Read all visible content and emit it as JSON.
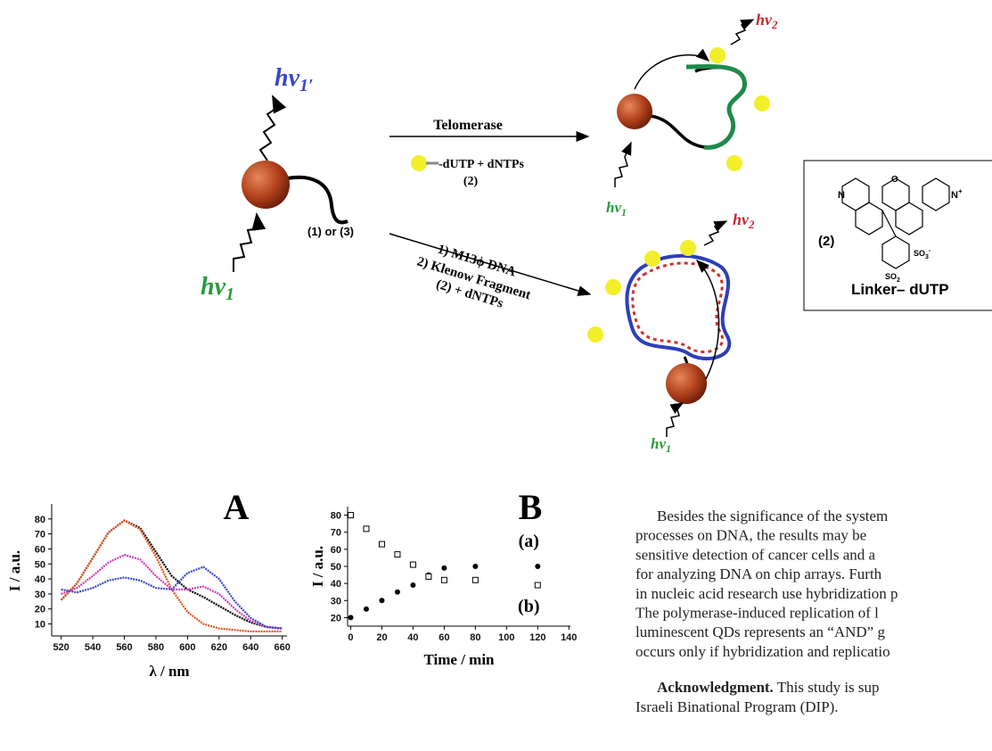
{
  "scheme": {
    "hv1_prime": {
      "main": "hν",
      "sub": "1′"
    },
    "hv1_left": {
      "main": "hν",
      "sub": "1"
    },
    "strand_label": "(1) or (3)",
    "top_arrow": {
      "above": "Telomerase",
      "below": "-dUTP + dNTPs",
      "below2": "(2)"
    },
    "bottom_arrow": {
      "line1": "1) M13ϕ DNA",
      "line2": "2) Klenow Fragment",
      "line3": "(2) + dNTPs"
    },
    "hv2_top": {
      "main": "hν",
      "sub": "2"
    },
    "hv1_top": {
      "main": "hν",
      "sub": "1"
    },
    "hv2_bottom": {
      "main": "hν",
      "sub": "2"
    },
    "hv1_bottom": {
      "main": "hν",
      "sub": "1"
    }
  },
  "inset": {
    "label": "(2)",
    "name": "Linker– dUTP",
    "n_left": "N",
    "n_right": {
      "main": "N",
      "sup": "+"
    },
    "oxygen": "O",
    "so3": {
      "main": "SO",
      "sub": "3",
      "sup": "-"
    },
    "so2": {
      "main": "SO",
      "sub": "2"
    }
  },
  "chart_data": [
    {
      "type": "line",
      "title": "A",
      "xlabel": "λ / nm",
      "ylabel": "I / a.u.",
      "x": [
        520,
        530,
        540,
        550,
        560,
        570,
        580,
        590,
        600,
        610,
        620,
        630,
        640,
        650,
        660
      ],
      "series": [
        {
          "color": "#000000",
          "values": [
            26,
            37,
            54,
            71,
            79,
            74,
            58,
            42,
            33,
            28,
            22,
            16,
            11,
            8,
            7
          ]
        },
        {
          "color": "#e0541c",
          "values": [
            26,
            37,
            54,
            71,
            79,
            73,
            55,
            33,
            18,
            10,
            7,
            6,
            5,
            5,
            5
          ]
        },
        {
          "color": "#d23ab4",
          "values": [
            30,
            34,
            42,
            51,
            56,
            53,
            42,
            33,
            33,
            35,
            30,
            20,
            12,
            8,
            7
          ]
        },
        {
          "color": "#3a46c8",
          "values": [
            33,
            31,
            34,
            39,
            41,
            39,
            34,
            33,
            44,
            48,
            40,
            25,
            14,
            8,
            7
          ]
        }
      ],
      "xlim": [
        514,
        663
      ],
      "ylim": [
        2,
        90
      ],
      "xticks": [
        520,
        540,
        560,
        580,
        600,
        620,
        640,
        660
      ],
      "yticks": [
        10,
        20,
        30,
        40,
        50,
        60,
        70,
        80
      ]
    },
    {
      "type": "scatter",
      "title": "B",
      "xlabel": "Time / min",
      "ylabel": "I / a.u.",
      "series": [
        {
          "name": "(a)",
          "marker": "filled-circle",
          "color": "#000000",
          "x": [
            0,
            10,
            20,
            30,
            40,
            50,
            60,
            80,
            120
          ],
          "values": [
            20,
            25,
            30,
            35,
            39,
            45,
            49,
            50,
            50
          ]
        },
        {
          "name": "(b)",
          "marker": "open-square",
          "color": "#000000",
          "x": [
            0,
            10,
            20,
            30,
            40,
            50,
            60,
            80,
            120
          ],
          "values": [
            80,
            72,
            63,
            57,
            51,
            44,
            42,
            42,
            39
          ]
        }
      ],
      "xlim": [
        -2,
        141
      ],
      "ylim": [
        15,
        85
      ],
      "xticks": [
        0,
        20,
        40,
        60,
        80,
        100,
        120,
        140
      ],
      "yticks": [
        20,
        30,
        40,
        50,
        60,
        70,
        80
      ]
    }
  ],
  "text": {
    "paragraph": [
      "Besides the significance of the system",
      "processes on DNA, the results may be",
      "sensitive detection of cancer cells and a",
      "for analyzing DNA on chip arrays. Furth",
      "in nucleic acid research use hybridization p",
      "The polymerase-induced replication of l",
      "luminescent QDs represents an “AND” g",
      "occurs only if hybridization and replicatio"
    ],
    "acknowledgment": {
      "heading": "Acknowledgment.",
      "line1": " This study is sup",
      "line2": "Israeli Binational Program (DIP)."
    }
  }
}
